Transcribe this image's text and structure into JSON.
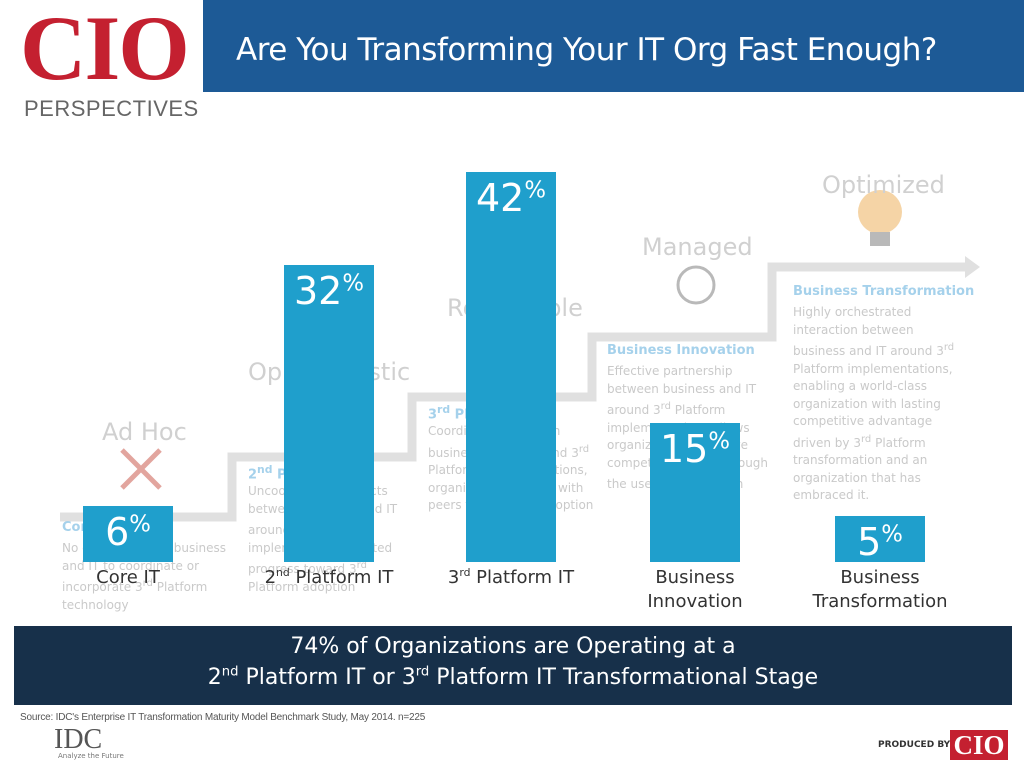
{
  "header": {
    "logo": "CIO",
    "logo_subtitle": "PERSPECTIVES",
    "title": "Are You Transforming Your IT Org Fast Enough?"
  },
  "stages": [
    {
      "level": "Ad Hoc",
      "name": "Core IT",
      "description": "No efforts to align business and IT to coordinate or incorporate 3rd Platform technology"
    },
    {
      "level": "Opportunistic",
      "name": "2nd Platform IT",
      "description": "Uncoordinated projects between business and IT around 3rd Platform implementation, limited progress toward 3rd Platform adoption"
    },
    {
      "level": "Repeatable",
      "name": "3rd Platform IT",
      "description": "Coordination between business and IT around 3rd Platform implementations, organization on pace with peers for platform adoption"
    },
    {
      "level": "Managed",
      "name": "Business Innovation",
      "description": "Effective partnership between business and IT around 3rd Platform implementations allows organization to achieve competitive parity through the use of 3rd Platform"
    },
    {
      "level": "Optimized",
      "name": "Business Transformation",
      "description": "Highly orchestrated interaction between business and IT around 3rd Platform implementations, enabling a world-class organization with lasting competitive advantage driven by 3rd Platform transformation and an organization that has embraced it."
    }
  ],
  "chart_data": {
    "type": "bar",
    "categories": [
      "Core IT",
      "2nd Platform IT",
      "3rd Platform IT",
      "Business Innovation",
      "Business Transformation"
    ],
    "values": [
      6,
      32,
      42,
      15,
      5
    ],
    "value_labels": [
      "6%",
      "32%",
      "42%",
      "15%",
      "5%"
    ],
    "color": "#1f9fcc"
  },
  "banner": {
    "lines": [
      "74% of Organizations are Operating at a",
      "2nd Platform IT or 3rd Platform IT Transformational Stage"
    ]
  },
  "footer": {
    "source": "Source: IDC's Enterprise IT Transformation Maturity Model Benchmark Study, May 2014. n=225",
    "idc_logo": "IDC",
    "idc_tagline": "Analyze the Future",
    "produced_by": "PRODUCED BY",
    "produced_logo": "CIO"
  }
}
